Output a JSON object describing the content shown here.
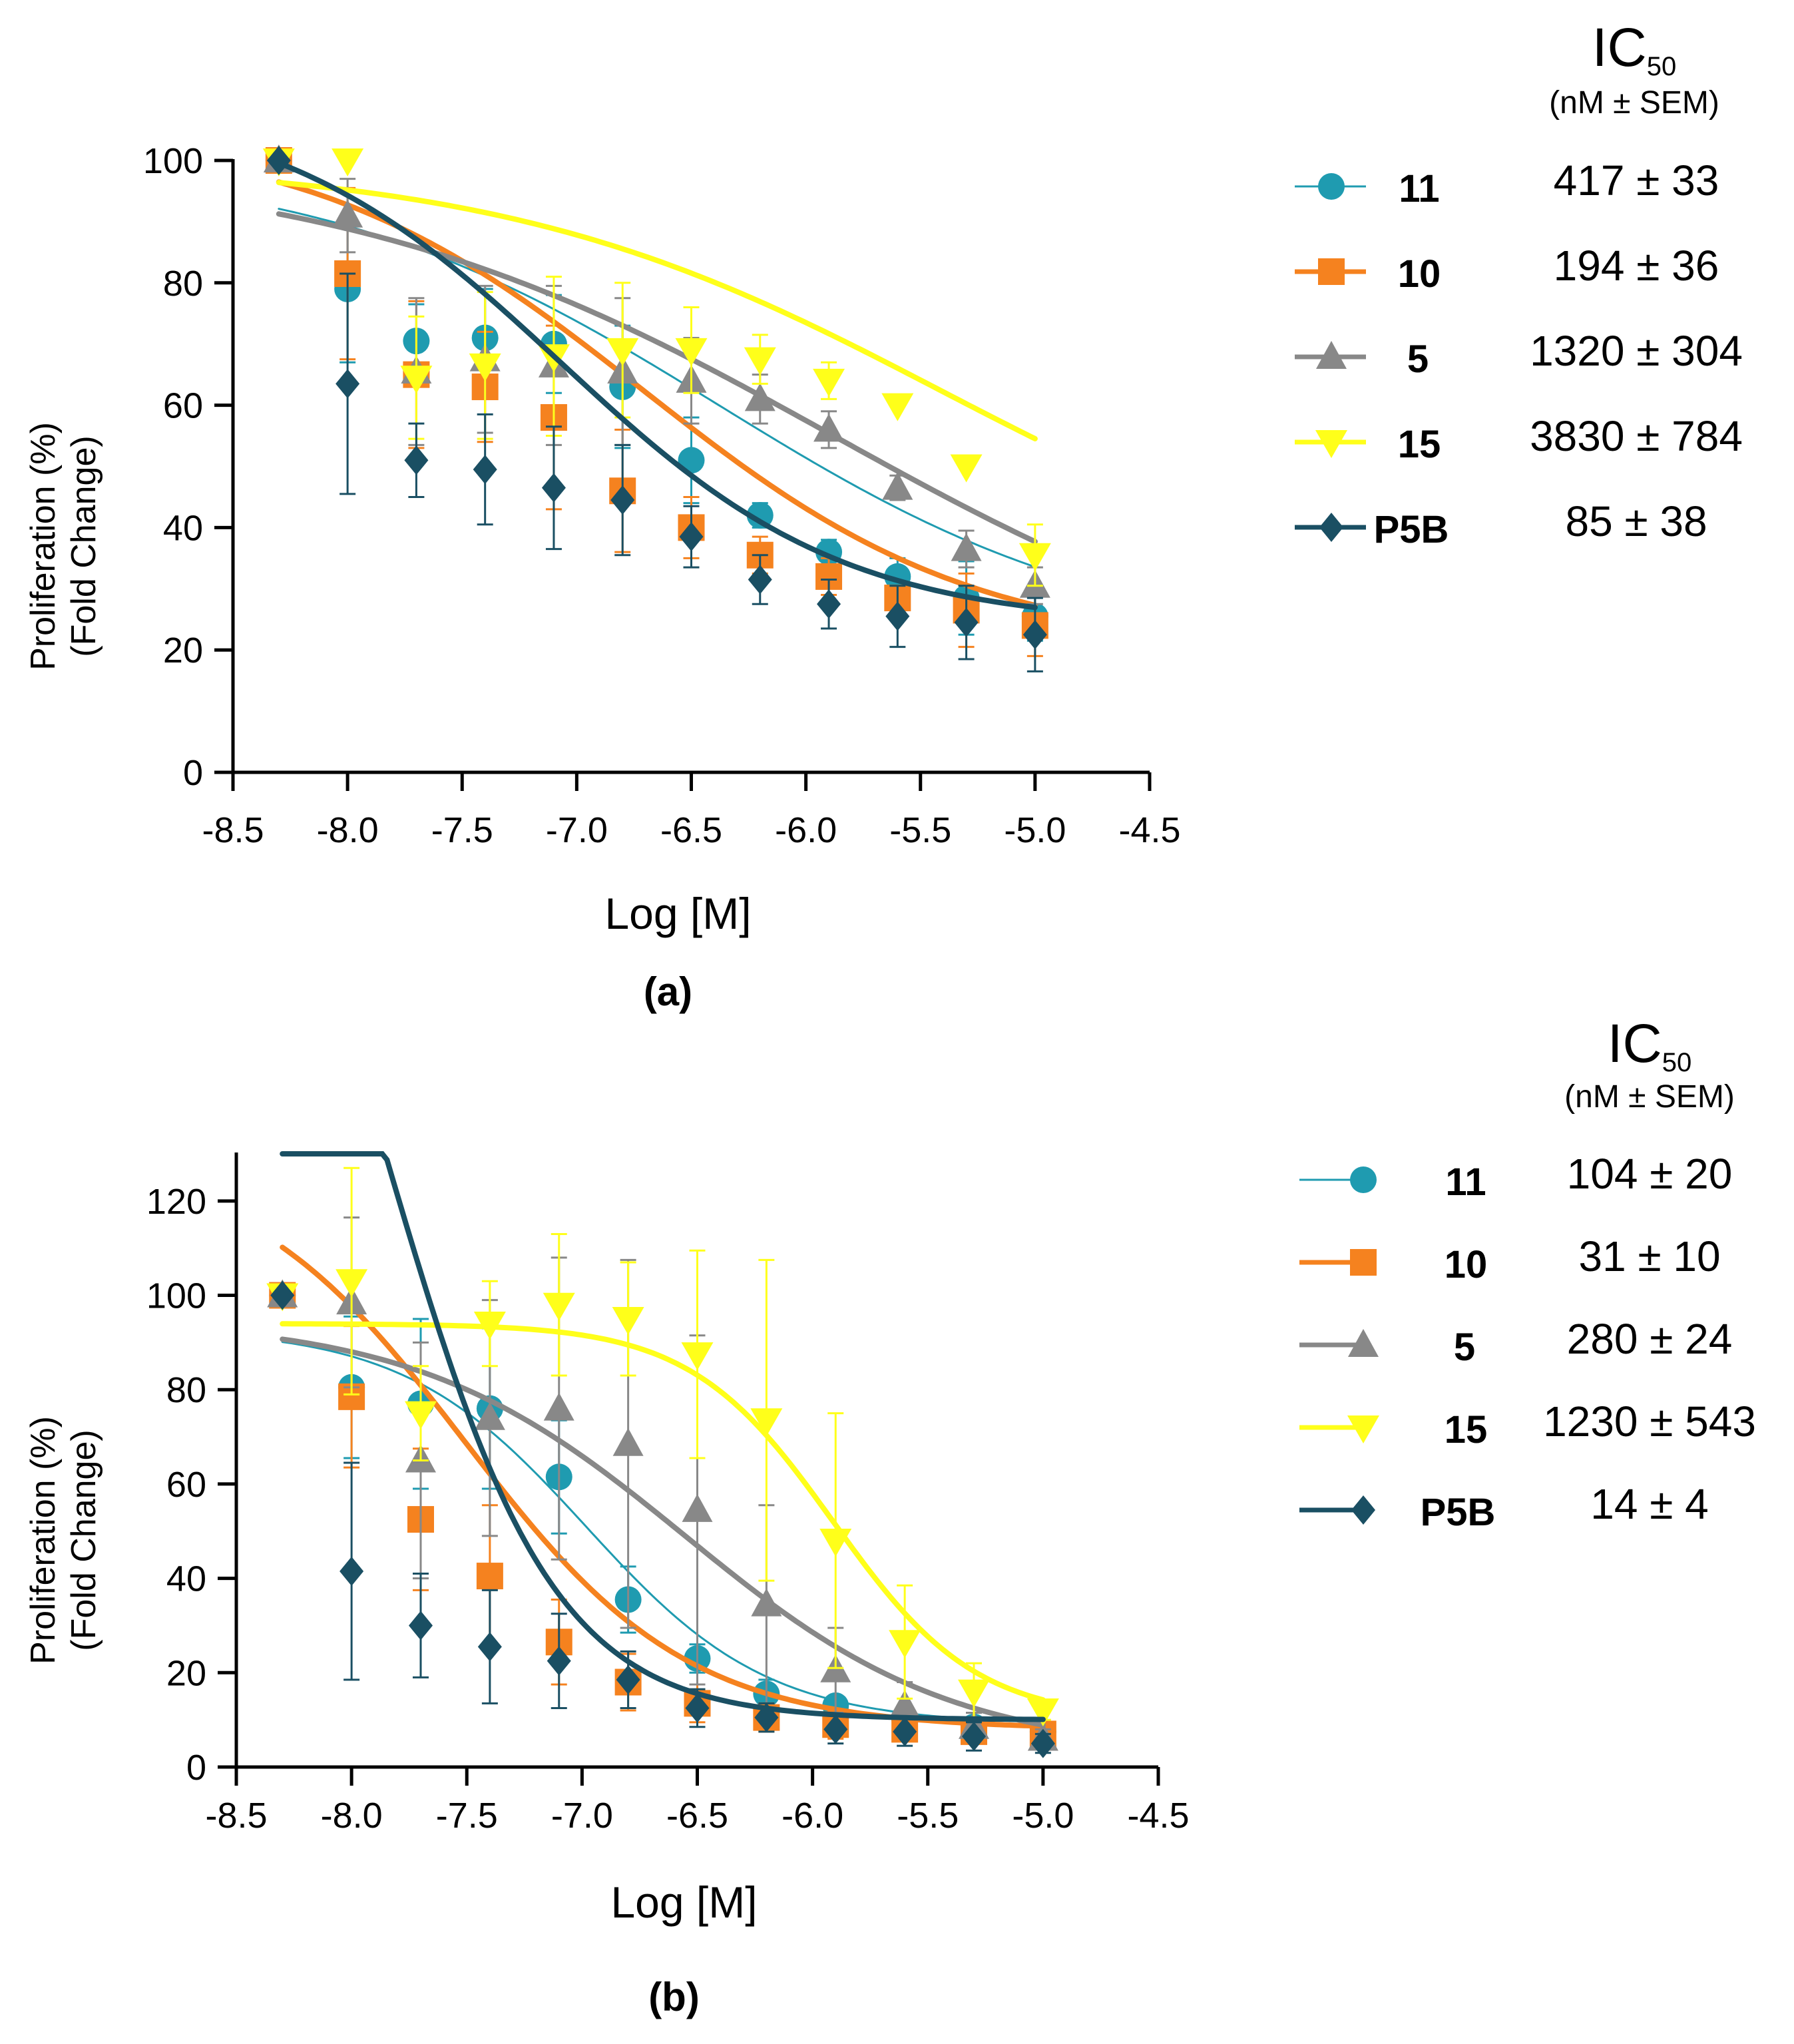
{
  "chart_data": [
    {
      "type": "scatter",
      "panel_label": "(a)",
      "xlabel": "Log [M]",
      "ylabel": [
        "Proliferation (%)",
        "(Fold Change)"
      ],
      "xlim": [
        -8.5,
        -4.5
      ],
      "ylim": [
        0,
        100
      ],
      "xticks": [
        "-8.5",
        "-8.0",
        "-7.5",
        "-7.0",
        "-6.5",
        "-6.0",
        "-5.5",
        "-5.0",
        "-4.5"
      ],
      "yticks": [
        "0",
        "20",
        "40",
        "60",
        "80",
        "100"
      ],
      "grid": false,
      "legend_position": "right",
      "legend_header": {
        "title": "IC",
        "subscript": "50",
        "units": "(nM ± SEM)"
      },
      "series": [
        {
          "name": "11",
          "ic50": "417 ± 33",
          "color": "#1f9bb0",
          "marker": "circle",
          "x": [
            -8.3,
            -8.0,
            -7.7,
            -7.4,
            -7.1,
            -6.8,
            -6.5,
            -6.2,
            -5.9,
            -5.6,
            -5.3,
            -5.0
          ],
          "y": [
            100,
            79,
            70.5,
            71,
            70,
            63,
            51,
            42,
            36,
            32,
            28.5,
            25.5
          ],
          "sem": [
            0,
            12,
            6,
            8,
            8,
            10,
            7,
            2,
            2,
            3,
            6,
            4
          ],
          "fit": {
            "top": 100,
            "bottom": 20,
            "ic50": 4.17e-07,
            "hill": 0.5
          }
        },
        {
          "name": "10",
          "ic50": "194 ± 36",
          "color": "#f5821f",
          "marker": "square",
          "x": [
            -8.3,
            -8.0,
            -7.7,
            -7.4,
            -7.1,
            -6.8,
            -6.5,
            -6.2,
            -5.9,
            -5.6,
            -5.3,
            -5.0
          ],
          "y": [
            100,
            81.5,
            65,
            63,
            58,
            46,
            40,
            35.5,
            32,
            28.5,
            26.5,
            24
          ],
          "sem": [
            0,
            14,
            12,
            9,
            15,
            10,
            5,
            3,
            3,
            2,
            6,
            5
          ],
          "fit": {
            "top": 105,
            "bottom": 20,
            "ic50": 1.94e-07,
            "hill": 0.6
          }
        },
        {
          "name": "5",
          "ic50": "1320 ± 304",
          "color": "#888888",
          "marker": "triangle-up",
          "x": [
            -8.3,
            -8.0,
            -7.7,
            -7.4,
            -7.1,
            -6.8,
            -6.5,
            -6.2,
            -5.9,
            -5.6,
            -5.3,
            -5.0
          ],
          "y": [
            100,
            91,
            65.5,
            67.5,
            66.5,
            65.5,
            64,
            61,
            56,
            46.5,
            36.5,
            30.5
          ],
          "sem": [
            0,
            6,
            12,
            12,
            13,
            12,
            7,
            4,
            3,
            2,
            3,
            3
          ],
          "fit": {
            "top": 100,
            "bottom": 10,
            "ic50": 1.32e-06,
            "hill": 0.4
          }
        },
        {
          "name": "15",
          "ic50": "3830 ± 784",
          "color": "#ffff1a",
          "marker": "triangle-down",
          "x": [
            -8.3,
            -8.0,
            -7.7,
            -7.4,
            -7.1,
            -6.8,
            -6.5,
            -6.2,
            -5.9,
            -5.6,
            -5.3,
            -5.0
          ],
          "y": [
            100,
            100,
            64.5,
            66.5,
            68,
            69,
            69,
            67.5,
            64,
            60,
            50,
            35.5
          ],
          "sem": [
            0,
            0,
            10,
            12,
            13,
            11,
            7,
            4,
            3,
            0,
            0,
            5
          ],
          "fit": {
            "top": 100,
            "bottom": 25,
            "ic50": 3.83e-06,
            "hill": 0.45
          }
        },
        {
          "name": "P5B",
          "ic50": "85 ± 38",
          "color": "#1a4f63",
          "marker": "diamond",
          "x": [
            -8.3,
            -8.0,
            -7.7,
            -7.4,
            -7.1,
            -6.8,
            -6.5,
            -6.2,
            -5.9,
            -5.6,
            -5.3,
            -5.0
          ],
          "y": [
            100,
            63.5,
            51,
            49.5,
            46.5,
            44.5,
            38.5,
            31.5,
            27.5,
            25.5,
            24.5,
            22.5
          ],
          "sem": [
            0,
            18,
            6,
            9,
            10,
            9,
            5,
            4,
            4,
            5,
            6,
            6
          ],
          "fit": {
            "top": 110,
            "bottom": 24,
            "ic50": 8.5e-08,
            "hill": 0.7
          }
        }
      ]
    },
    {
      "type": "scatter",
      "panel_label": "(b)",
      "xlabel": "Log [M]",
      "ylabel": [
        "Proliferation (%)",
        "(Fold Change)"
      ],
      "xlim": [
        -8.5,
        -4.5
      ],
      "ylim": [
        0,
        130
      ],
      "xticks": [
        "-8.5",
        "-8.0",
        "-7.5",
        "-7.0",
        "-6.5",
        "-6.0",
        "-5.5",
        "-5.0",
        "-4.5"
      ],
      "yticks": [
        "0",
        "20",
        "40",
        "60",
        "80",
        "100",
        "120"
      ],
      "grid": false,
      "legend_position": "right",
      "legend_header": {
        "title": "IC",
        "subscript": "50",
        "units": "(nM ± SEM)"
      },
      "series": [
        {
          "name": "11",
          "ic50": "104 ± 20",
          "color": "#1f9bb0",
          "marker": "circle",
          "x": [
            -8.3,
            -8.0,
            -7.7,
            -7.4,
            -7.1,
            -6.8,
            -6.5,
            -6.2,
            -5.9,
            -5.6,
            -5.3,
            -5.0
          ],
          "y": [
            100,
            80.5,
            77,
            76,
            61.5,
            35.5,
            23,
            15.5,
            13,
            10,
            8.5,
            7.5
          ],
          "sem": [
            0,
            15,
            18,
            17,
            12,
            7,
            3,
            3,
            2,
            2,
            2,
            2
          ],
          "fit": {
            "top": 93,
            "bottom": 9,
            "ic50": 1.04e-07,
            "hill": 1.1
          }
        },
        {
          "name": "10",
          "ic50": "31 ± 10",
          "color": "#f5821f",
          "marker": "square",
          "x": [
            -8.3,
            -8.0,
            -7.7,
            -7.4,
            -7.1,
            -6.8,
            -6.5,
            -6.2,
            -5.9,
            -5.6,
            -5.3,
            -5.0
          ],
          "y": [
            100,
            78.5,
            52.5,
            40.5,
            26.5,
            18,
            13.5,
            10.5,
            9,
            8,
            7.5,
            7
          ],
          "sem": [
            0,
            15,
            15,
            15,
            9,
            6,
            4,
            3,
            3,
            2,
            2,
            2
          ],
          "fit": {
            "top": 130,
            "bottom": 8,
            "ic50": 3.1e-08,
            "hill": 0.9
          }
        },
        {
          "name": "5",
          "ic50": "280 ± 24",
          "color": "#888888",
          "marker": "triangle-up",
          "x": [
            -8.3,
            -8.0,
            -7.7,
            -7.4,
            -7.1,
            -6.8,
            -6.5,
            -6.2,
            -5.9,
            -5.6,
            -5.3,
            -5.0
          ],
          "y": [
            100,
            98.5,
            65,
            74,
            76,
            68.5,
            54.5,
            34.5,
            20.5,
            13,
            8.5,
            6
          ],
          "sem": [
            0,
            18,
            25,
            25,
            32,
            39,
            37,
            21,
            9,
            5,
            3,
            2
          ],
          "fit": {
            "top": 95,
            "bottom": 3,
            "ic50": 2.8e-07,
            "hill": 0.75
          }
        },
        {
          "name": "15",
          "ic50": "1230 ± 543",
          "color": "#ffff1a",
          "marker": "triangle-down",
          "x": [
            -8.3,
            -8.0,
            -7.7,
            -7.4,
            -7.1,
            -6.8,
            -6.5,
            -6.2,
            -5.9,
            -5.6,
            -5.3,
            -5.0
          ],
          "y": [
            100,
            103,
            75,
            94,
            98,
            95,
            87.5,
            73.5,
            48,
            26.5,
            16,
            12
          ],
          "sem": [
            0,
            24,
            10,
            9,
            15,
            12,
            22,
            34,
            27,
            12,
            6,
            2
          ],
          "fit": {
            "top": 94,
            "bottom": 10,
            "ic50": 1.23e-06,
            "hill": 1.4
          }
        },
        {
          "name": "P5B",
          "ic50": "14 ± 4",
          "color": "#1a4f63",
          "marker": "diamond",
          "x": [
            -8.3,
            -8.0,
            -7.7,
            -7.4,
            -7.1,
            -6.8,
            -6.5,
            -6.2,
            -5.9,
            -5.6,
            -5.3,
            -5.0
          ],
          "y": [
            100,
            41.5,
            30,
            25.5,
            22.5,
            18.5,
            12.5,
            10.5,
            8,
            7.5,
            6.5,
            5
          ],
          "sem": [
            0,
            23,
            11,
            12,
            10,
            6,
            4,
            3,
            3,
            3,
            3,
            2
          ],
          "fit": {
            "top": 250,
            "bottom": 10,
            "ic50": 1.4e-08,
            "hill": 1.2
          }
        }
      ]
    }
  ]
}
